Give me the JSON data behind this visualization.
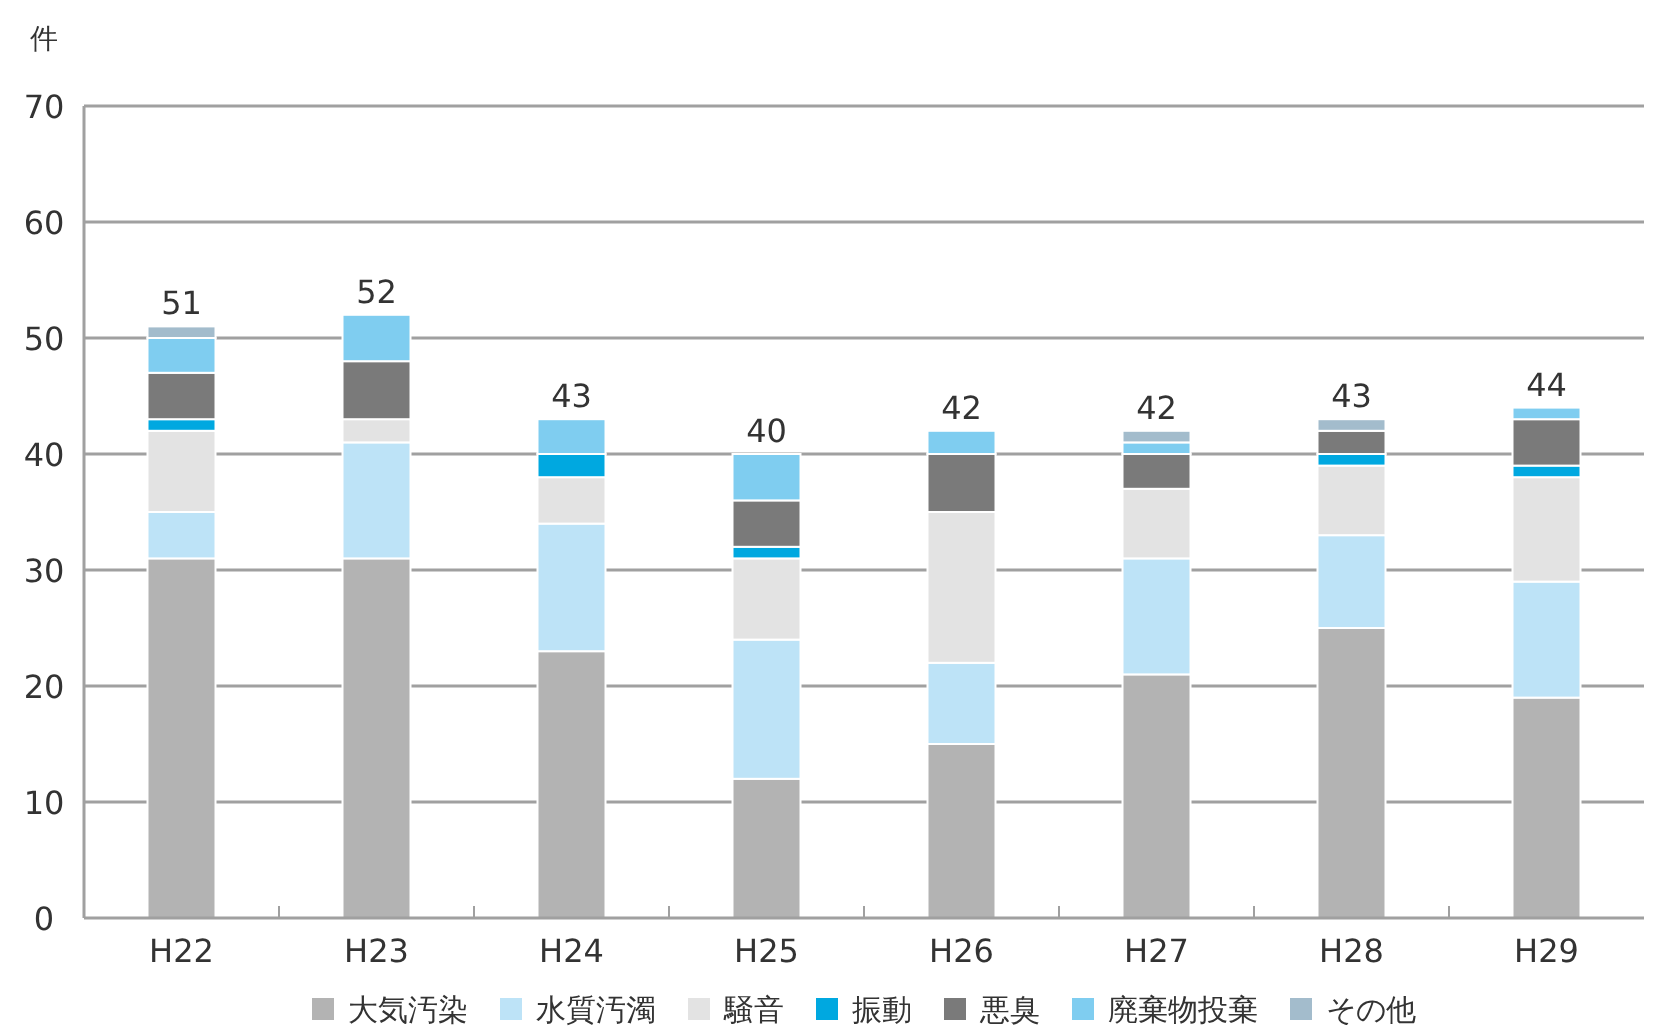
{
  "chart_data": {
    "type": "bar",
    "stacked": true,
    "ylabel": "件",
    "categories": [
      "H22",
      "H23",
      "H24",
      "H25",
      "H26",
      "H27",
      "H28",
      "H29"
    ],
    "series": [
      {
        "name": "大気汚染",
        "color": "#b3b3b3",
        "values": [
          31,
          31,
          23,
          12,
          15,
          21,
          25,
          19
        ]
      },
      {
        "name": "水質汚濁",
        "color": "#bde3f7",
        "values": [
          4,
          10,
          11,
          12,
          7,
          10,
          8,
          10
        ]
      },
      {
        "name": "騒音",
        "color": "#e3e3e3",
        "values": [
          7,
          2,
          4,
          7,
          13,
          6,
          6,
          9
        ]
      },
      {
        "name": "振動",
        "color": "#00a8e0",
        "values": [
          1,
          0,
          2,
          1,
          0,
          0,
          1,
          1
        ]
      },
      {
        "name": "悪臭",
        "color": "#7a7a7a",
        "values": [
          4,
          5,
          0,
          4,
          5,
          3,
          2,
          4
        ]
      },
      {
        "name": "廃棄物投棄",
        "color": "#7fcdf0",
        "values": [
          3,
          4,
          3,
          4,
          2,
          1,
          0,
          1
        ]
      },
      {
        "name": "その他",
        "color": "#a3bccc",
        "values": [
          1,
          0,
          0,
          0,
          0,
          1,
          1,
          0
        ]
      }
    ],
    "totals": [
      "51",
      "52",
      "43",
      "40",
      "42",
      "42",
      "43",
      "44"
    ],
    "ylim": [
      0,
      70
    ],
    "yticks": [
      0,
      10,
      20,
      30,
      40,
      50,
      60,
      70
    ],
    "grid": "y",
    "legend": "bottom"
  }
}
